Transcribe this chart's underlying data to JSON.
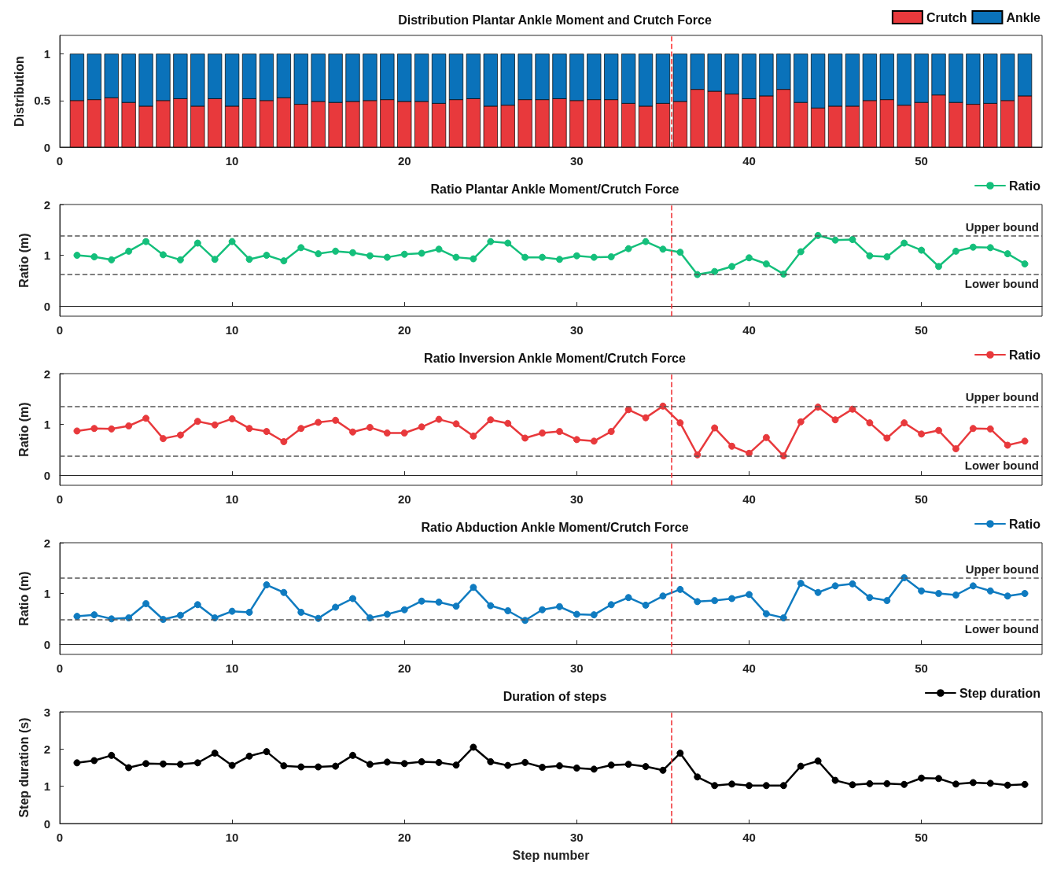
{
  "chart_data": [
    {
      "type": "bar",
      "stacked": true,
      "title": "Distribution Plantar Ankle Moment and Crutch Force",
      "ylabel": "Distribution",
      "legend": "top right",
      "x": [
        1,
        2,
        3,
        4,
        5,
        6,
        7,
        8,
        9,
        10,
        11,
        12,
        13,
        14,
        15,
        16,
        17,
        18,
        19,
        20,
        21,
        22,
        23,
        24,
        25,
        26,
        27,
        28,
        29,
        30,
        31,
        32,
        33,
        34,
        35,
        36,
        37,
        38,
        39,
        40,
        41,
        42,
        43,
        44,
        45,
        46,
        47,
        48,
        49,
        50,
        51,
        52,
        53,
        54,
        55,
        56
      ],
      "xlim": [
        0,
        57
      ],
      "xticks": [
        0,
        10,
        20,
        30,
        40,
        50
      ],
      "ylim": [
        0,
        1.2
      ],
      "yticks": [
        0,
        0.5,
        1
      ],
      "series": [
        {
          "name": "Crutch",
          "color": "#e8393c",
          "values": [
            0.5,
            0.51,
            0.53,
            0.48,
            0.44,
            0.5,
            0.52,
            0.44,
            0.52,
            0.44,
            0.52,
            0.5,
            0.53,
            0.46,
            0.49,
            0.48,
            0.49,
            0.5,
            0.51,
            0.49,
            0.49,
            0.47,
            0.51,
            0.52,
            0.44,
            0.45,
            0.51,
            0.51,
            0.52,
            0.5,
            0.51,
            0.51,
            0.47,
            0.44,
            0.47,
            0.49,
            0.62,
            0.6,
            0.57,
            0.52,
            0.55,
            0.62,
            0.48,
            0.42,
            0.44,
            0.44,
            0.5,
            0.51,
            0.45,
            0.48,
            0.56,
            0.48,
            0.46,
            0.47,
            0.5,
            0.55
          ]
        },
        {
          "name": "Ankle",
          "color": "#0a72ba",
          "values": [
            0.5,
            0.49,
            0.47,
            0.52,
            0.56,
            0.5,
            0.48,
            0.56,
            0.48,
            0.56,
            0.48,
            0.5,
            0.47,
            0.54,
            0.51,
            0.52,
            0.51,
            0.5,
            0.49,
            0.51,
            0.51,
            0.53,
            0.49,
            0.48,
            0.56,
            0.55,
            0.49,
            0.49,
            0.48,
            0.5,
            0.49,
            0.49,
            0.53,
            0.56,
            0.53,
            0.51,
            0.38,
            0.4,
            0.43,
            0.48,
            0.45,
            0.38,
            0.52,
            0.58,
            0.56,
            0.56,
            0.5,
            0.49,
            0.55,
            0.52,
            0.44,
            0.52,
            0.54,
            0.53,
            0.5,
            0.45
          ]
        }
      ],
      "ref_lines": [
        {
          "axis": "x",
          "value": 35.5,
          "label": null,
          "color": "#ff3333",
          "line_style": "dashed"
        }
      ]
    },
    {
      "type": "line",
      "title": "Ratio Plantar Ankle Moment/Crutch Force",
      "ylabel": "Ratio (m)",
      "legend": "top right",
      "marker": "circle",
      "line_style": "solid",
      "x": [
        1,
        2,
        3,
        4,
        5,
        6,
        7,
        8,
        9,
        10,
        11,
        12,
        13,
        14,
        15,
        16,
        17,
        18,
        19,
        20,
        21,
        22,
        23,
        24,
        25,
        26,
        27,
        28,
        29,
        30,
        31,
        32,
        33,
        34,
        35,
        36,
        37,
        38,
        39,
        40,
        41,
        42,
        43,
        44,
        45,
        46,
        47,
        48,
        49,
        50,
        51,
        52,
        53,
        54,
        55,
        56
      ],
      "xlim": [
        0,
        57
      ],
      "xticks": [
        0,
        10,
        20,
        30,
        40,
        50
      ],
      "ylim": [
        -0.2,
        2
      ],
      "yticks": [
        0,
        1,
        2
      ],
      "series": [
        {
          "name": "Ratio",
          "color": "#14bf7b",
          "values": [
            1.0,
            0.97,
            0.91,
            1.08,
            1.27,
            1.01,
            0.91,
            1.24,
            0.92,
            1.27,
            0.92,
            1.0,
            0.89,
            1.15,
            1.03,
            1.08,
            1.05,
            0.99,
            0.96,
            1.02,
            1.04,
            1.12,
            0.96,
            0.93,
            1.27,
            1.24,
            0.96,
            0.96,
            0.92,
            0.99,
            0.96,
            0.97,
            1.13,
            1.27,
            1.12,
            1.06,
            0.62,
            0.68,
            0.78,
            0.95,
            0.83,
            0.63,
            1.07,
            1.39,
            1.3,
            1.31,
            0.99,
            0.97,
            1.24,
            1.1,
            0.78,
            1.08,
            1.16,
            1.15,
            1.03,
            0.83
          ]
        }
      ],
      "ref_lines": [
        {
          "axis": "x",
          "value": 35.5,
          "label": null,
          "color": "#f0393c",
          "line_style": "dashed"
        },
        {
          "axis": "y",
          "value": 1.38,
          "label": "Upper bound",
          "color": "#555555",
          "line_style": "dashed"
        },
        {
          "axis": "y",
          "value": 0.62,
          "label": "Lower bound",
          "color": "#555555",
          "line_style": "dashed"
        }
      ]
    },
    {
      "type": "line",
      "title": "Ratio Inversion Ankle Moment/Crutch Force",
      "ylabel": "Ratio (m)",
      "legend": "top right",
      "marker": "circle",
      "line_style": "solid",
      "x": [
        1,
        2,
        3,
        4,
        5,
        6,
        7,
        8,
        9,
        10,
        11,
        12,
        13,
        14,
        15,
        16,
        17,
        18,
        19,
        20,
        21,
        22,
        23,
        24,
        25,
        26,
        27,
        28,
        29,
        30,
        31,
        32,
        33,
        34,
        35,
        36,
        37,
        38,
        39,
        40,
        41,
        42,
        43,
        44,
        45,
        46,
        47,
        48,
        49,
        50,
        51,
        52,
        53,
        54,
        55,
        56
      ],
      "xlim": [
        0,
        57
      ],
      "xticks": [
        0,
        10,
        20,
        30,
        40,
        50
      ],
      "ylim": [
        -0.2,
        2
      ],
      "yticks": [
        0,
        1,
        2
      ],
      "series": [
        {
          "name": "Ratio",
          "color": "#e8393c",
          "values": [
            0.87,
            0.92,
            0.91,
            0.97,
            1.12,
            0.72,
            0.79,
            1.06,
            0.99,
            1.11,
            0.92,
            0.86,
            0.66,
            0.92,
            1.04,
            1.08,
            0.85,
            0.94,
            0.83,
            0.83,
            0.95,
            1.1,
            1.01,
            0.77,
            1.09,
            1.02,
            0.73,
            0.83,
            0.86,
            0.7,
            0.67,
            0.86,
            1.29,
            1.13,
            1.36,
            1.03,
            0.4,
            0.93,
            0.57,
            0.43,
            0.74,
            0.38,
            1.05,
            1.34,
            1.09,
            1.3,
            1.03,
            0.73,
            1.03,
            0.81,
            0.88,
            0.52,
            0.92,
            0.91,
            0.59,
            0.67
          ]
        }
      ],
      "ref_lines": [
        {
          "axis": "x",
          "value": 35.5,
          "label": null,
          "color": "#f0393c",
          "line_style": "dashed"
        },
        {
          "axis": "y",
          "value": 1.36,
          "label": "Upper bound",
          "color": "#555555",
          "line_style": "dashed"
        },
        {
          "axis": "y",
          "value": 0.38,
          "label": "Lower bound",
          "color": "#555555",
          "line_style": "dashed"
        }
      ]
    },
    {
      "type": "line",
      "title": "Ratio Abduction Ankle Moment/Crutch Force",
      "ylabel": "Ratio (m)",
      "legend": "top right",
      "marker": "circle",
      "line_style": "solid",
      "x": [
        1,
        2,
        3,
        4,
        5,
        6,
        7,
        8,
        9,
        10,
        11,
        12,
        13,
        14,
        15,
        16,
        17,
        18,
        19,
        20,
        21,
        22,
        23,
        24,
        25,
        26,
        27,
        28,
        29,
        30,
        31,
        32,
        33,
        34,
        35,
        36,
        37,
        38,
        39,
        40,
        41,
        42,
        43,
        44,
        45,
        46,
        47,
        48,
        49,
        50,
        51,
        52,
        53,
        54,
        55,
        56
      ],
      "xlim": [
        0,
        57
      ],
      "xticks": [
        0,
        10,
        20,
        30,
        40,
        50
      ],
      "ylim": [
        -0.2,
        2
      ],
      "yticks": [
        0,
        1,
        2
      ],
      "series": [
        {
          "name": "Ratio",
          "color": "#0f7bc0",
          "values": [
            0.55,
            0.58,
            0.5,
            0.52,
            0.8,
            0.49,
            0.57,
            0.78,
            0.52,
            0.65,
            0.63,
            1.17,
            1.02,
            0.63,
            0.51,
            0.73,
            0.9,
            0.52,
            0.59,
            0.68,
            0.85,
            0.83,
            0.75,
            1.12,
            0.76,
            0.66,
            0.47,
            0.68,
            0.74,
            0.59,
            0.58,
            0.78,
            0.92,
            0.77,
            0.95,
            1.08,
            0.84,
            0.86,
            0.9,
            0.98,
            0.6,
            0.52,
            1.2,
            1.02,
            1.15,
            1.19,
            0.92,
            0.86,
            1.31,
            1.05,
            1.0,
            0.97,
            1.15,
            1.05,
            0.95,
            1.0
          ]
        }
      ],
      "ref_lines": [
        {
          "axis": "x",
          "value": 35.5,
          "label": null,
          "color": "#f0393c",
          "line_style": "dashed"
        },
        {
          "axis": "y",
          "value": 1.31,
          "label": "Upper bound",
          "color": "#555555",
          "line_style": "dashed"
        },
        {
          "axis": "y",
          "value": 0.48,
          "label": "Lower bound",
          "color": "#555555",
          "line_style": "dashed"
        }
      ]
    },
    {
      "type": "line",
      "title": "Duration of steps",
      "ylabel": "Step duration (s)",
      "xlabel": "Step number",
      "legend": "top right",
      "marker": "circle",
      "line_style": "solid",
      "x": [
        1,
        2,
        3,
        4,
        5,
        6,
        7,
        8,
        9,
        10,
        11,
        12,
        13,
        14,
        15,
        16,
        17,
        18,
        19,
        20,
        21,
        22,
        23,
        24,
        25,
        26,
        27,
        28,
        29,
        30,
        31,
        32,
        33,
        34,
        35,
        36,
        37,
        38,
        39,
        40,
        41,
        42,
        43,
        44,
        45,
        46,
        47,
        48,
        49,
        50,
        51,
        52,
        53,
        54,
        55,
        56
      ],
      "xlim": [
        0,
        57
      ],
      "xticks": [
        0,
        10,
        20,
        30,
        40,
        50
      ],
      "ylim": [
        0,
        3
      ],
      "yticks": [
        0,
        1,
        2,
        3
      ],
      "series": [
        {
          "name": "Step duration",
          "color": "#000000",
          "values": [
            1.63,
            1.69,
            1.83,
            1.5,
            1.61,
            1.6,
            1.59,
            1.63,
            1.89,
            1.56,
            1.81,
            1.93,
            1.55,
            1.52,
            1.52,
            1.54,
            1.83,
            1.59,
            1.65,
            1.61,
            1.66,
            1.64,
            1.57,
            2.05,
            1.66,
            1.56,
            1.64,
            1.51,
            1.55,
            1.49,
            1.46,
            1.57,
            1.59,
            1.53,
            1.43,
            1.89,
            1.25,
            1.02,
            1.06,
            1.02,
            1.02,
            1.02,
            1.54,
            1.68,
            1.16,
            1.04,
            1.07,
            1.07,
            1.05,
            1.22,
            1.21,
            1.06,
            1.1,
            1.08,
            1.03,
            1.05
          ]
        }
      ],
      "ref_lines": [
        {
          "axis": "x",
          "value": 35.5,
          "label": null,
          "color": "#f0393c",
          "line_style": "dashed"
        }
      ]
    }
  ]
}
